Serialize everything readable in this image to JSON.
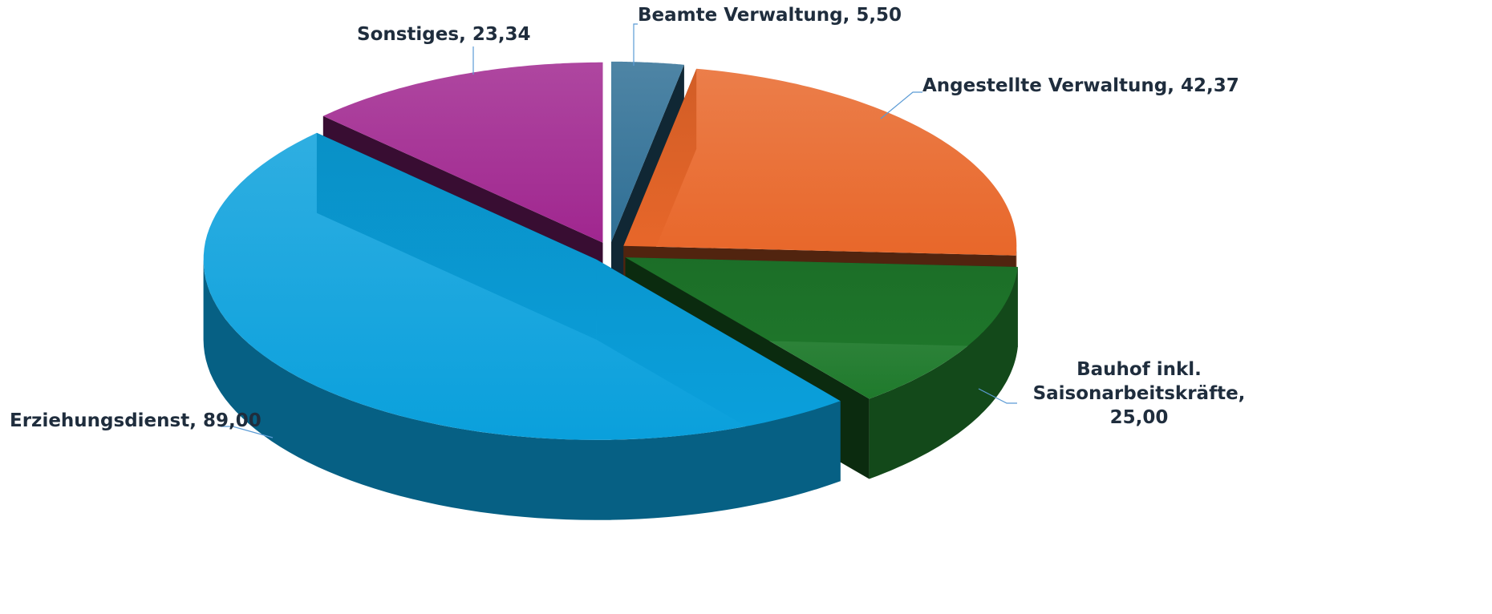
{
  "chart_data": {
    "type": "pie",
    "categories": [
      "Beamte Verwaltung",
      "Angestellte Verwaltung",
      "Bauhof inkl. Saisonarbeitskräfte",
      "Erziehungsdienst",
      "Sonstiges"
    ],
    "values": [
      5.5,
      42.37,
      25.0,
      89.0,
      23.34
    ],
    "value_labels": [
      "5,50",
      "42,37",
      "25,00",
      "89,00",
      "23,34"
    ],
    "colors": [
      "#2f6f95",
      "#e8672a",
      "#1f7a2c",
      "#0aa0dc",
      "#a0268f"
    ]
  }
}
